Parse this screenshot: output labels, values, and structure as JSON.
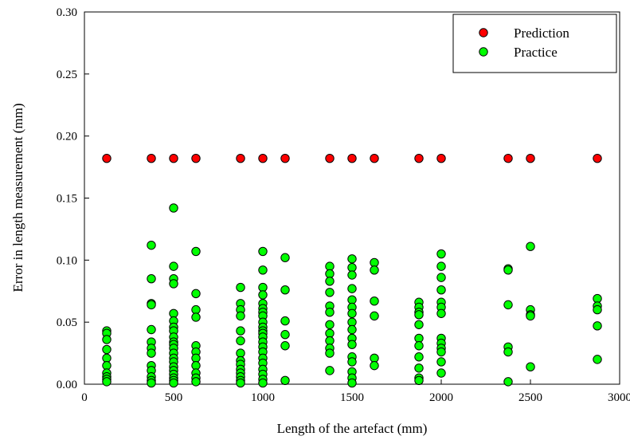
{
  "chart_data": {
    "type": "scatter",
    "title": "",
    "xlabel": "Length of the artefact (mm)",
    "ylabel": "Error in length measurement (mm)",
    "xlim": [
      0,
      3000
    ],
    "ylim": [
      0,
      0.3
    ],
    "x_ticks": [
      "0",
      "500",
      "1000",
      "1500",
      "2000",
      "2500",
      "3000"
    ],
    "y_ticks": [
      "0.00",
      "0.05",
      "0.10",
      "0.15",
      "0.20",
      "0.25",
      "0.30"
    ],
    "grid": false,
    "legend_position": "top-right",
    "series": [
      {
        "name": "Prediction",
        "color": "#ff0000",
        "points": [
          [
            125,
            0.182
          ],
          [
            375,
            0.182
          ],
          [
            500,
            0.182
          ],
          [
            625,
            0.182
          ],
          [
            875,
            0.182
          ],
          [
            1000,
            0.182
          ],
          [
            1125,
            0.182
          ],
          [
            1375,
            0.182
          ],
          [
            1500,
            0.182
          ],
          [
            1625,
            0.182
          ],
          [
            1875,
            0.182
          ],
          [
            2000,
            0.182
          ],
          [
            2375,
            0.182
          ],
          [
            2500,
            0.182
          ],
          [
            2875,
            0.182
          ]
        ]
      },
      {
        "name": "Practice",
        "color": "#00ff00",
        "points": [
          [
            125,
            0.043
          ],
          [
            125,
            0.041
          ],
          [
            125,
            0.036
          ],
          [
            125,
            0.028
          ],
          [
            125,
            0.021
          ],
          [
            125,
            0.015
          ],
          [
            125,
            0.009
          ],
          [
            125,
            0.006
          ],
          [
            125,
            0.004
          ],
          [
            125,
            0.002
          ],
          [
            375,
            0.112
          ],
          [
            375,
            0.085
          ],
          [
            375,
            0.065
          ],
          [
            375,
            0.064
          ],
          [
            375,
            0.044
          ],
          [
            375,
            0.034
          ],
          [
            375,
            0.029
          ],
          [
            375,
            0.025
          ],
          [
            375,
            0.015
          ],
          [
            375,
            0.011
          ],
          [
            375,
            0.006
          ],
          [
            375,
            0.003
          ],
          [
            375,
            0.001
          ],
          [
            500,
            0.142
          ],
          [
            500,
            0.095
          ],
          [
            500,
            0.085
          ],
          [
            500,
            0.081
          ],
          [
            500,
            0.057
          ],
          [
            500,
            0.051
          ],
          [
            500,
            0.046
          ],
          [
            500,
            0.043
          ],
          [
            500,
            0.038
          ],
          [
            500,
            0.034
          ],
          [
            500,
            0.032
          ],
          [
            500,
            0.029
          ],
          [
            500,
            0.025
          ],
          [
            500,
            0.021
          ],
          [
            500,
            0.018
          ],
          [
            500,
            0.014
          ],
          [
            500,
            0.011
          ],
          [
            500,
            0.008
          ],
          [
            500,
            0.005
          ],
          [
            500,
            0.003
          ],
          [
            500,
            0.001
          ],
          [
            625,
            0.107
          ],
          [
            625,
            0.073
          ],
          [
            625,
            0.06
          ],
          [
            625,
            0.054
          ],
          [
            625,
            0.031
          ],
          [
            625,
            0.026
          ],
          [
            625,
            0.021
          ],
          [
            625,
            0.015
          ],
          [
            625,
            0.009
          ],
          [
            625,
            0.005
          ],
          [
            625,
            0.002
          ],
          [
            875,
            0.078
          ],
          [
            875,
            0.065
          ],
          [
            875,
            0.06
          ],
          [
            875,
            0.055
          ],
          [
            875,
            0.043
          ],
          [
            875,
            0.035
          ],
          [
            875,
            0.025
          ],
          [
            875,
            0.019
          ],
          [
            875,
            0.016
          ],
          [
            875,
            0.012
          ],
          [
            875,
            0.009
          ],
          [
            875,
            0.006
          ],
          [
            875,
            0.003
          ],
          [
            875,
            0.001
          ],
          [
            1000,
            0.107
          ],
          [
            1000,
            0.092
          ],
          [
            1000,
            0.078
          ],
          [
            1000,
            0.072
          ],
          [
            1000,
            0.065
          ],
          [
            1000,
            0.061
          ],
          [
            1000,
            0.058
          ],
          [
            1000,
            0.055
          ],
          [
            1000,
            0.05
          ],
          [
            1000,
            0.046
          ],
          [
            1000,
            0.043
          ],
          [
            1000,
            0.041
          ],
          [
            1000,
            0.038
          ],
          [
            1000,
            0.034
          ],
          [
            1000,
            0.03
          ],
          [
            1000,
            0.026
          ],
          [
            1000,
            0.021
          ],
          [
            1000,
            0.017
          ],
          [
            1000,
            0.012
          ],
          [
            1000,
            0.008
          ],
          [
            1000,
            0.004
          ],
          [
            1000,
            0.001
          ],
          [
            1125,
            0.102
          ],
          [
            1125,
            0.076
          ],
          [
            1125,
            0.051
          ],
          [
            1125,
            0.04
          ],
          [
            1125,
            0.031
          ],
          [
            1125,
            0.003
          ],
          [
            1375,
            0.095
          ],
          [
            1375,
            0.089
          ],
          [
            1375,
            0.083
          ],
          [
            1375,
            0.074
          ],
          [
            1375,
            0.063
          ],
          [
            1375,
            0.058
          ],
          [
            1375,
            0.048
          ],
          [
            1375,
            0.041
          ],
          [
            1375,
            0.035
          ],
          [
            1375,
            0.029
          ],
          [
            1375,
            0.025
          ],
          [
            1375,
            0.011
          ],
          [
            1500,
            0.101
          ],
          [
            1500,
            0.094
          ],
          [
            1500,
            0.088
          ],
          [
            1500,
            0.077
          ],
          [
            1500,
            0.068
          ],
          [
            1500,
            0.062
          ],
          [
            1500,
            0.057
          ],
          [
            1500,
            0.05
          ],
          [
            1500,
            0.044
          ],
          [
            1500,
            0.037
          ],
          [
            1500,
            0.032
          ],
          [
            1500,
            0.022
          ],
          [
            1500,
            0.018
          ],
          [
            1500,
            0.01
          ],
          [
            1500,
            0.005
          ],
          [
            1500,
            0.001
          ],
          [
            1625,
            0.098
          ],
          [
            1625,
            0.092
          ],
          [
            1625,
            0.067
          ],
          [
            1625,
            0.055
          ],
          [
            1625,
            0.021
          ],
          [
            1625,
            0.015
          ],
          [
            1875,
            0.066
          ],
          [
            1875,
            0.062
          ],
          [
            1875,
            0.058
          ],
          [
            1875,
            0.056
          ],
          [
            1875,
            0.048
          ],
          [
            1875,
            0.037
          ],
          [
            1875,
            0.031
          ],
          [
            1875,
            0.022
          ],
          [
            1875,
            0.013
          ],
          [
            1875,
            0.005
          ],
          [
            1875,
            0.003
          ],
          [
            2000,
            0.105
          ],
          [
            2000,
            0.095
          ],
          [
            2000,
            0.086
          ],
          [
            2000,
            0.076
          ],
          [
            2000,
            0.066
          ],
          [
            2000,
            0.062
          ],
          [
            2000,
            0.057
          ],
          [
            2000,
            0.037
          ],
          [
            2000,
            0.033
          ],
          [
            2000,
            0.029
          ],
          [
            2000,
            0.026
          ],
          [
            2000,
            0.018
          ],
          [
            2000,
            0.009
          ],
          [
            2375,
            0.093
          ],
          [
            2375,
            0.092
          ],
          [
            2375,
            0.064
          ],
          [
            2375,
            0.03
          ],
          [
            2375,
            0.026
          ],
          [
            2375,
            0.002
          ],
          [
            2500,
            0.111
          ],
          [
            2500,
            0.06
          ],
          [
            2500,
            0.056
          ],
          [
            2500,
            0.055
          ],
          [
            2500,
            0.014
          ],
          [
            2875,
            0.069
          ],
          [
            2875,
            0.063
          ],
          [
            2875,
            0.06
          ],
          [
            2875,
            0.047
          ],
          [
            2875,
            0.02
          ]
        ]
      }
    ]
  }
}
